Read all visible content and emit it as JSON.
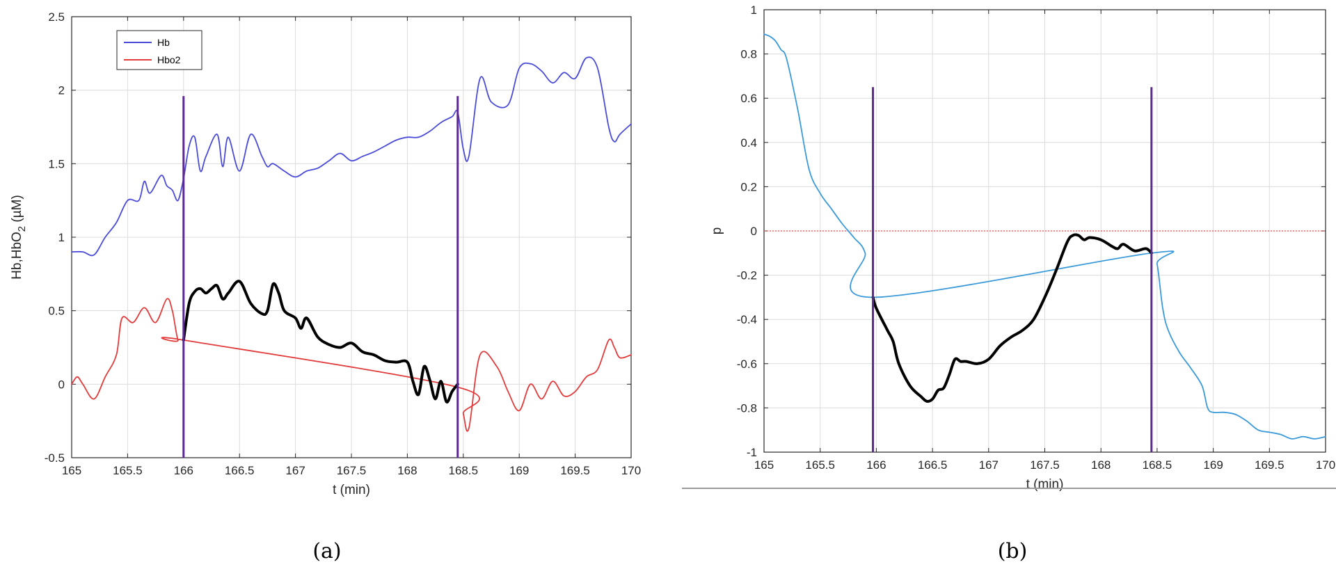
{
  "chart_data": [
    {
      "type": "line",
      "caption": "(a)",
      "xlabel": "t (min)",
      "ylabel_main": "Hb,HbO",
      "ylabel_sub": "2",
      "ylabel_unit": " (µM)",
      "xlim": [
        165,
        170
      ],
      "ylim": [
        -0.5,
        2.5
      ],
      "xticks": [
        165,
        165.5,
        166,
        166.5,
        167,
        167.5,
        168,
        168.5,
        169,
        169.5,
        170
      ],
      "xtick_labels": [
        "165",
        "165.5",
        "166",
        "166.5",
        "167",
        "167.5",
        "168",
        "168.5",
        "169",
        "169.5",
        "170"
      ],
      "yticks": [
        -0.5,
        0,
        0.5,
        1,
        1.5,
        2,
        2.5
      ],
      "ytick_labels": [
        "-0.5",
        "0",
        "0.5",
        "1",
        "1.5",
        "2",
        "2.5"
      ],
      "grid": true,
      "legend": {
        "placement": "top-left",
        "entries": [
          "Hb",
          "Hbo2"
        ]
      },
      "colors": {
        "Hb": "#4a4ad8",
        "Hbo2": "#e23b3b",
        "highlight": "#000000",
        "markers": "#5b2a8f"
      },
      "vertical_markers": [
        166.0,
        168.45
      ],
      "series": [
        {
          "name": "Hb",
          "x": [
            165.0,
            165.1,
            165.2,
            165.3,
            165.4,
            165.5,
            165.6,
            165.65,
            165.7,
            165.8,
            165.85,
            165.9,
            165.95,
            166.0,
            166.05,
            166.1,
            166.15,
            166.2,
            166.3,
            166.35,
            166.4,
            166.5,
            166.6,
            166.7,
            166.75,
            166.8,
            166.9,
            167.0,
            167.1,
            167.2,
            167.3,
            167.4,
            167.5,
            167.6,
            167.7,
            167.8,
            167.9,
            168.0,
            168.1,
            168.2,
            168.3,
            168.4,
            168.45,
            168.5,
            168.55,
            168.65,
            168.75,
            168.9,
            169.0,
            169.1,
            169.2,
            169.3,
            169.4,
            169.5,
            169.6,
            169.7,
            169.8,
            169.85,
            169.9,
            170.0
          ],
          "y": [
            0.9,
            0.9,
            0.88,
            1.0,
            1.1,
            1.25,
            1.25,
            1.38,
            1.3,
            1.42,
            1.35,
            1.32,
            1.25,
            1.4,
            1.62,
            1.68,
            1.45,
            1.55,
            1.7,
            1.48,
            1.68,
            1.45,
            1.7,
            1.55,
            1.48,
            1.5,
            1.45,
            1.41,
            1.45,
            1.47,
            1.52,
            1.57,
            1.52,
            1.55,
            1.58,
            1.62,
            1.66,
            1.68,
            1.68,
            1.72,
            1.78,
            1.82,
            1.85,
            1.6,
            1.55,
            2.08,
            1.92,
            1.9,
            2.15,
            2.18,
            2.13,
            2.05,
            2.12,
            2.08,
            2.22,
            2.15,
            1.75,
            1.65,
            1.7,
            1.77
          ]
        },
        {
          "name": "Hbo2",
          "x": [
            165.0,
            165.05,
            165.1,
            165.2,
            165.3,
            165.4,
            165.45,
            165.55,
            165.65,
            165.75,
            165.85,
            165.9,
            165.95,
            166.0,
            168.45,
            168.5,
            168.55,
            168.65,
            168.8,
            168.9,
            169.0,
            169.1,
            169.2,
            169.3,
            169.4,
            169.5,
            169.6,
            169.7,
            169.8,
            169.85,
            169.9,
            170.0
          ],
          "y": [
            0.0,
            0.05,
            0.0,
            -0.1,
            0.05,
            0.2,
            0.45,
            0.42,
            0.52,
            0.42,
            0.58,
            0.5,
            0.3,
            0.3,
            -0.02,
            -0.2,
            -0.3,
            0.2,
            0.12,
            -0.05,
            -0.18,
            0.0,
            -0.1,
            0.02,
            -0.08,
            -0.05,
            0.05,
            0.1,
            0.3,
            0.25,
            0.18,
            0.2
          ]
        },
        {
          "name": "",
          "x": [
            166.0,
            166.05,
            166.1,
            166.15,
            166.2,
            166.25,
            166.3,
            166.35,
            166.4,
            166.5,
            166.6,
            166.7,
            166.75,
            166.8,
            166.85,
            166.9,
            167.0,
            167.05,
            167.1,
            167.2,
            167.3,
            167.4,
            167.5,
            167.6,
            167.7,
            167.8,
            167.9,
            168.0,
            168.05,
            168.1,
            168.15,
            168.2,
            168.25,
            168.3,
            168.35,
            168.4,
            168.45
          ],
          "y": [
            0.3,
            0.55,
            0.63,
            0.65,
            0.62,
            0.65,
            0.67,
            0.58,
            0.62,
            0.7,
            0.55,
            0.48,
            0.5,
            0.68,
            0.62,
            0.5,
            0.45,
            0.38,
            0.45,
            0.32,
            0.27,
            0.25,
            0.28,
            0.22,
            0.2,
            0.16,
            0.15,
            0.15,
            0.02,
            -0.07,
            0.12,
            0.03,
            -0.1,
            0.02,
            -0.12,
            -0.05,
            0.0
          ]
        }
      ]
    },
    {
      "type": "line",
      "caption": "(b)",
      "xlabel": "t (min)",
      "ylabel": "p",
      "xlim": [
        165,
        170
      ],
      "ylim": [
        -1,
        1
      ],
      "xticks": [
        165,
        165.5,
        166,
        166.5,
        167,
        167.5,
        168,
        168.5,
        169,
        169.5,
        170
      ],
      "xtick_labels": [
        "165",
        "165.5",
        "166",
        "166.5",
        "167",
        "167.5",
        "168",
        "168.5",
        "169",
        "169.5",
        "170"
      ],
      "yticks": [
        -1,
        -0.8,
        -0.6,
        -0.4,
        -0.2,
        0,
        0.2,
        0.4,
        0.6,
        0.8,
        1
      ],
      "ytick_labels": [
        "-1",
        "-0.8",
        "-0.6",
        "-0.4",
        "-0.2",
        "0",
        "0.2",
        "0.4",
        "0.6",
        "0.8",
        "1"
      ],
      "grid": true,
      "colors": {
        "p": "#3a9ad9",
        "highlight": "#000000",
        "markers": "#5b2a8f",
        "zero_line": "#e05050"
      },
      "vertical_markers": [
        165.97,
        168.45
      ],
      "reference_lines": [
        0
      ],
      "series": [
        {
          "name": "",
          "x": [
            165.0,
            165.05,
            165.1,
            165.15,
            165.2,
            165.3,
            165.4,
            165.5,
            165.6,
            165.7,
            165.8,
            165.9,
            165.97,
            168.45,
            168.5,
            168.55,
            168.6,
            168.7,
            168.8,
            168.9,
            168.95,
            169.0,
            169.1,
            169.2,
            169.3,
            169.4,
            169.5,
            169.6,
            169.7,
            169.8,
            169.9,
            170.0
          ],
          "y": [
            0.89,
            0.88,
            0.86,
            0.82,
            0.78,
            0.55,
            0.28,
            0.17,
            0.1,
            0.03,
            -0.03,
            -0.1,
            -0.3,
            -0.1,
            -0.15,
            -0.35,
            -0.45,
            -0.55,
            -0.62,
            -0.7,
            -0.8,
            -0.82,
            -0.82,
            -0.83,
            -0.86,
            -0.9,
            -0.91,
            -0.92,
            -0.94,
            -0.93,
            -0.94,
            -0.93
          ]
        },
        {
          "name": "",
          "x": [
            165.97,
            166.0,
            166.1,
            166.15,
            166.2,
            166.3,
            166.4,
            166.45,
            166.5,
            166.55,
            166.6,
            166.65,
            166.7,
            166.75,
            166.8,
            166.9,
            167.0,
            167.1,
            167.2,
            167.3,
            167.4,
            167.5,
            167.6,
            167.7,
            167.75,
            167.8,
            167.85,
            167.9,
            168.0,
            168.1,
            168.15,
            168.2,
            168.3,
            168.4,
            168.45
          ],
          "y": [
            -0.3,
            -0.35,
            -0.45,
            -0.5,
            -0.6,
            -0.7,
            -0.75,
            -0.77,
            -0.76,
            -0.72,
            -0.71,
            -0.65,
            -0.58,
            -0.59,
            -0.59,
            -0.6,
            -0.58,
            -0.52,
            -0.48,
            -0.45,
            -0.4,
            -0.3,
            -0.18,
            -0.05,
            -0.02,
            -0.02,
            -0.04,
            -0.03,
            -0.04,
            -0.07,
            -0.08,
            -0.06,
            -0.09,
            -0.08,
            -0.1
          ]
        }
      ]
    }
  ]
}
